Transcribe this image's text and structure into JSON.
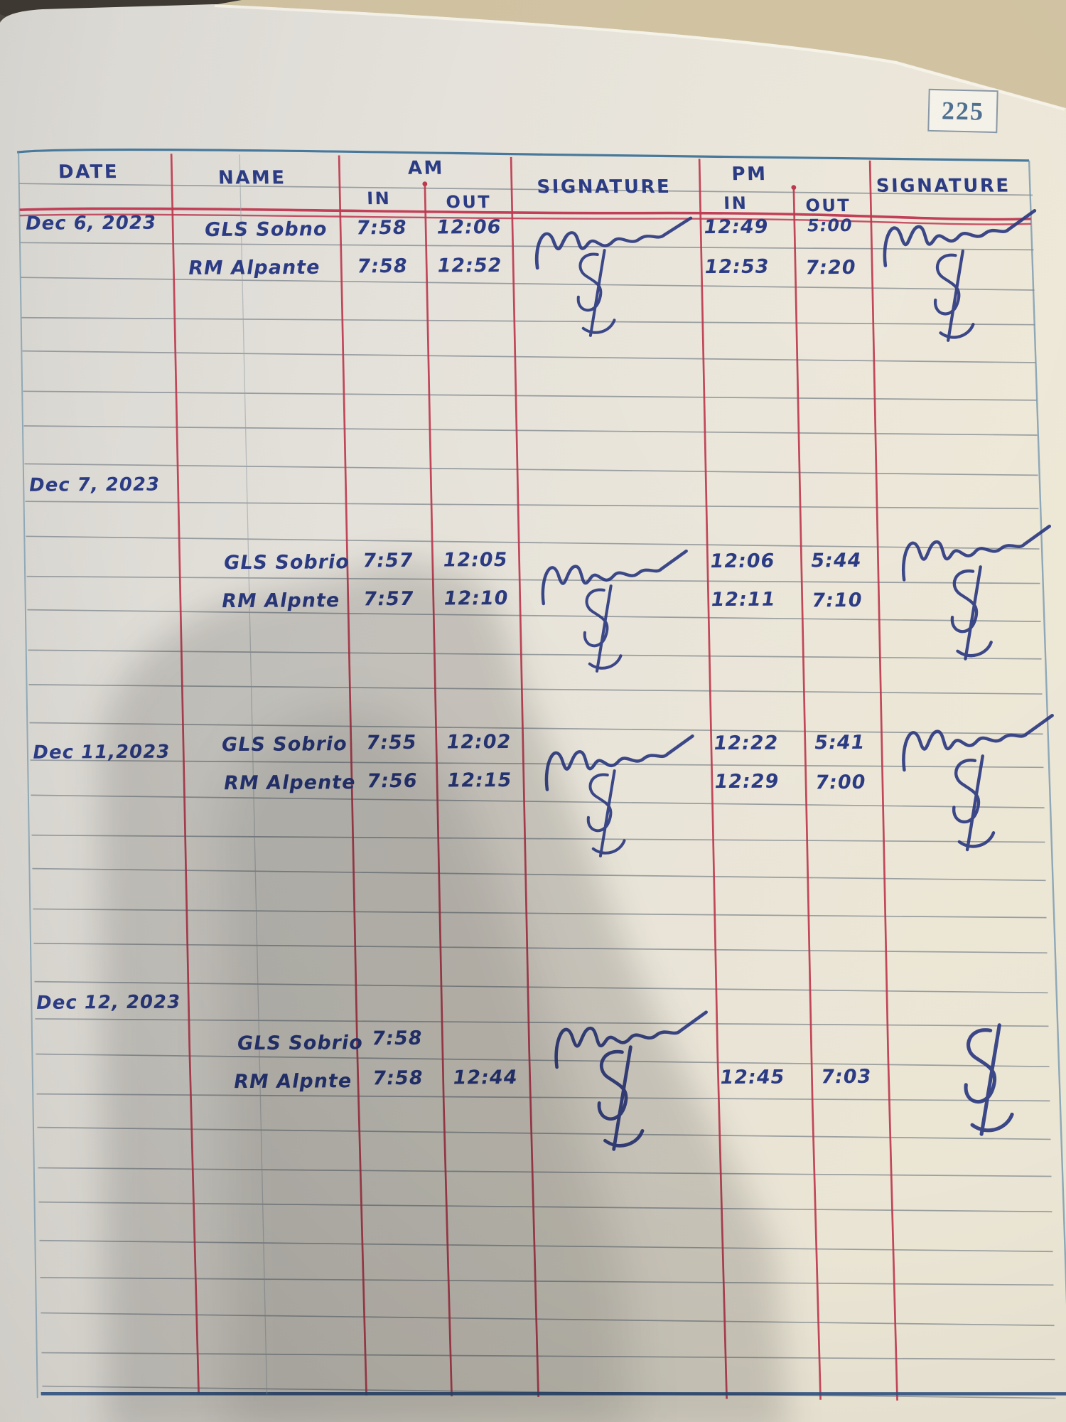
{
  "page": {
    "number": "225"
  },
  "table": {
    "headers": {
      "date": "DATE",
      "name": "NAME",
      "am": "AM",
      "pm": "PM",
      "in": "IN",
      "out": "OUT",
      "signature": "SIGNATURE"
    },
    "entries": [
      {
        "date": "Dec 6, 2023",
        "am_signed": true,
        "pm_signed": true,
        "rows": [
          {
            "name": "GLS Sobno",
            "am_in": "7:58",
            "am_out": "12:06",
            "pm_in": "12:49",
            "pm_out": "5:00"
          },
          {
            "name": "RM Alpante",
            "am_in": "7:58",
            "am_out": "12:52",
            "pm_in": "12:53",
            "pm_out": "7:20"
          }
        ]
      },
      {
        "date": "Dec 7, 2023",
        "am_signed": true,
        "pm_signed": true,
        "rows": [
          {
            "name": "GLS Sobrio",
            "am_in": "7:57",
            "am_out": "12:05",
            "pm_in": "12:06",
            "pm_out": "5:44"
          },
          {
            "name": "RM Alpnte",
            "am_in": "7:57",
            "am_out": "12:10",
            "pm_in": "12:11",
            "pm_out": "7:10"
          }
        ]
      },
      {
        "date": "Dec 11,2023",
        "am_signed": true,
        "pm_signed": true,
        "rows": [
          {
            "name": "GLS Sobrio",
            "am_in": "7:55",
            "am_out": "12:02",
            "pm_in": "12:22",
            "pm_out": "5:41"
          },
          {
            "name": "RM Alpente",
            "am_in": "7:56",
            "am_out": "12:15",
            "pm_in": "12:29",
            "pm_out": "7:00"
          }
        ]
      },
      {
        "date": "Dec 12, 2023",
        "am_signed": true,
        "pm_signed": true,
        "rows": [
          {
            "name": "GLS Sobrio",
            "am_in": "7:58",
            "am_out": "",
            "pm_in": "",
            "pm_out": ""
          },
          {
            "name": "RM Alpnte",
            "am_in": "7:58",
            "am_out": "12:44",
            "pm_in": "12:45",
            "pm_out": "7:03"
          }
        ]
      }
    ]
  },
  "colors": {
    "ink_blue": "#2c3c84",
    "rule_gray": "#7e868c",
    "line_red": "#bd3a4e",
    "border_blue": "#48799b",
    "paper": "#e9e6df",
    "desk_beige": "#d2c4a3"
  }
}
